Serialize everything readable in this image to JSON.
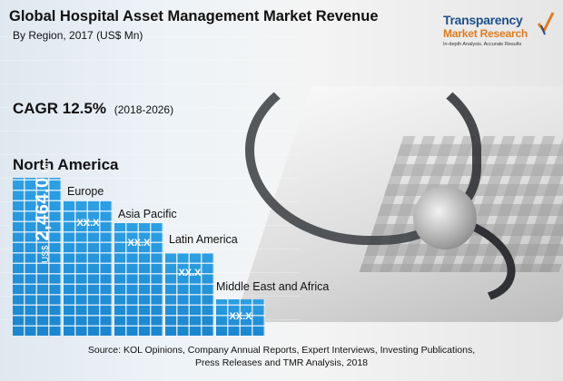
{
  "title": "Global Hospital Asset Management Market Revenue",
  "subtitle": "By Region, 2017 (US$ Mn)",
  "logo": {
    "line1": "Transparency",
    "line2": "Market Research",
    "line3": "In-depth Analysis. Accurate Results",
    "brand_color": "#1f4f8b",
    "accent_color": "#e07b1f",
    "mark_icon": "check-swoosh-icon"
  },
  "cagr": {
    "label": "CAGR 12.5%",
    "period": "(2018-2026)"
  },
  "bar_color": "#1f8fd8",
  "chart_data": {
    "type": "bar",
    "title": "Global Hospital Asset Management Market Revenue",
    "subtitle": "By Region, 2017 (US$ Mn)",
    "categories": [
      "North America",
      "Europe",
      "Asia Pacific",
      "Latin America",
      "Middle East and Africa"
    ],
    "value_labels": [
      "US$ 2,464.0 Mn",
      "XX.X",
      "XX.X",
      "XX.X",
      "XX.X"
    ],
    "values": [
      2464.0,
      null,
      null,
      null,
      null
    ],
    "grid": false,
    "legend": "none"
  },
  "highlight": {
    "category": "North America",
    "prefix": "US$",
    "value": "2,464.0",
    "unit": "Mn"
  },
  "source": {
    "line1": "Source: KOL Opinions, Company Annual Reports, Expert Interviews, Investing Publications,",
    "line2": "Press Releases and TMR Analysis, 2018"
  }
}
